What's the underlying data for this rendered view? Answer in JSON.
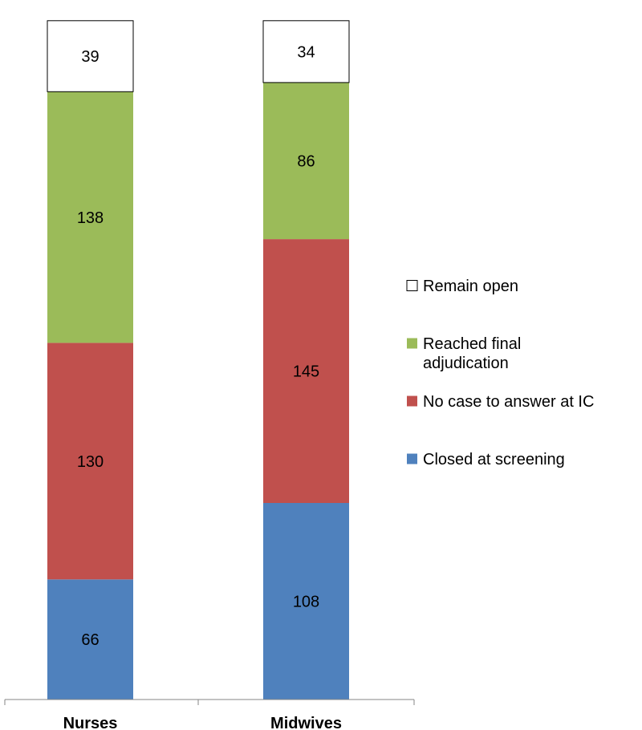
{
  "chart_data": {
    "type": "bar",
    "stacked": true,
    "categories": [
      "Nurses",
      "Midwives"
    ],
    "series": [
      {
        "name": "Closed at screening",
        "values": [
          66,
          108
        ],
        "color": "#4f81bd"
      },
      {
        "name": "No case to answer at IC",
        "values": [
          130,
          145
        ],
        "color": "#c0504d"
      },
      {
        "name": "Reached final adjudication",
        "values": [
          138,
          86
        ],
        "color": "#9bbb59"
      },
      {
        "name": "Remain open",
        "values": [
          39,
          34
        ],
        "color": "#ffffff"
      }
    ],
    "legend": {
      "position": "right",
      "order": [
        "Remain open",
        "Reached final adjudication",
        "No case to answer at IC",
        "Closed at screening"
      ],
      "entries": {
        "Remain open": [
          "Remain open"
        ],
        "Reached final adjudication": [
          "Reached final",
          "adjudication"
        ],
        "No case to answer at IC": [
          "No case to answer at IC"
        ],
        "Closed at screening": [
          "Closed at screening"
        ]
      }
    },
    "data_labels": true,
    "grid": false,
    "y_axis_visible": false
  }
}
